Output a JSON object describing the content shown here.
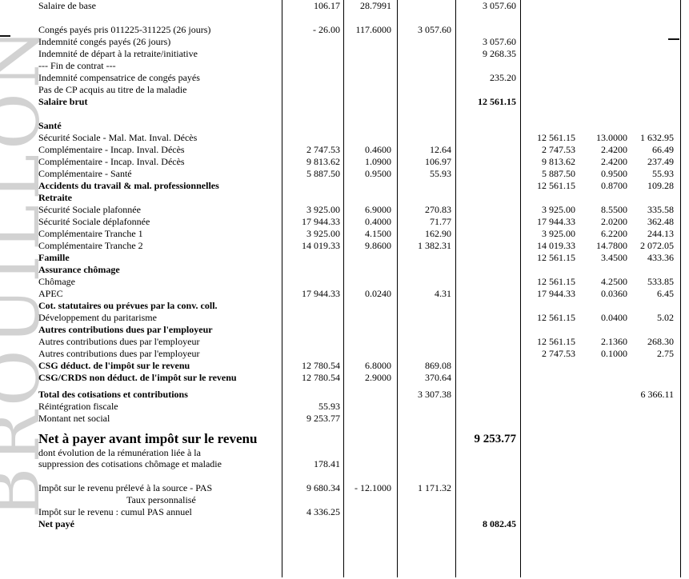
{
  "document": {
    "watermark": "BROUILLON",
    "rows": [
      {
        "label": "Salaire de base",
        "base": "106.17",
        "rate": "28.7991",
        "net": "3 057.60"
      },
      {
        "label": ""
      },
      {
        "label": "Congés payés pris 011225-311225 (26 jours)",
        "base": "- 26.00",
        "rate": "117.6000",
        "amount": "3 057.60"
      },
      {
        "label": "Indemnité congés payés (26 jours)",
        "net": "3 057.60"
      },
      {
        "label": "Indemnité de départ à la retraite/initiative",
        "net": "9 268.35"
      },
      {
        "label": "--- Fin de contrat ---"
      },
      {
        "label": "Indemnité compensatrice de congés payés",
        "net": "235.20"
      },
      {
        "label": "Pas de CP acquis au titre de la maladie"
      },
      {
        "label": "Salaire brut",
        "bold": true,
        "net": "12 561.15",
        "net_bold": true
      },
      {
        "label": ""
      },
      {
        "label": "Santé",
        "bold": true
      },
      {
        "label": "Sécurité Sociale - Mal. Mat. Inval. Décès",
        "emp_base": "12 561.15",
        "emp_rate": "13.0000",
        "emp_amount": "1 632.95"
      },
      {
        "label": "Complémentaire - Incap. Inval. Décès",
        "base": "2 747.53",
        "rate": "0.4600",
        "amount": "12.64",
        "emp_base": "2 747.53",
        "emp_rate": "2.4200",
        "emp_amount": "66.49"
      },
      {
        "label": "Complémentaire - Incap. Inval. Décès",
        "base": "9 813.62",
        "rate": "1.0900",
        "amount": "106.97",
        "emp_base": "9 813.62",
        "emp_rate": "2.4200",
        "emp_amount": "237.49"
      },
      {
        "label": "Complémentaire - Santé",
        "base": "5 887.50",
        "rate": "0.9500",
        "amount": "55.93",
        "emp_base": "5 887.50",
        "emp_rate": "0.9500",
        "emp_amount": "55.93"
      },
      {
        "label": "Accidents du travail & mal. professionnelles",
        "bold": true,
        "emp_base": "12 561.15",
        "emp_rate": "0.8700",
        "emp_amount": "109.28"
      },
      {
        "label": "Retraite",
        "bold": true
      },
      {
        "label": "Sécurité Sociale plafonnée",
        "base": "3 925.00",
        "rate": "6.9000",
        "amount": "270.83",
        "emp_base": "3 925.00",
        "emp_rate": "8.5500",
        "emp_amount": "335.58"
      },
      {
        "label": "Sécurité Sociale déplafonnée",
        "base": "17 944.33",
        "rate": "0.4000",
        "amount": "71.77",
        "emp_base": "17 944.33",
        "emp_rate": "2.0200",
        "emp_amount": "362.48"
      },
      {
        "label": "Complémentaire Tranche 1",
        "base": "3 925.00",
        "rate": "4.1500",
        "amount": "162.90",
        "emp_base": "3 925.00",
        "emp_rate": "6.2200",
        "emp_amount": "244.13"
      },
      {
        "label": "Complémentaire Tranche 2",
        "base": "14 019.33",
        "rate": "9.8600",
        "amount": "1 382.31",
        "emp_base": "14 019.33",
        "emp_rate": "14.7800",
        "emp_amount": "2 072.05"
      },
      {
        "label": "Famille",
        "bold": true,
        "emp_base": "12 561.15",
        "emp_rate": "3.4500",
        "emp_amount": "433.36"
      },
      {
        "label": "Assurance chômage",
        "bold": true
      },
      {
        "label": "Chômage",
        "emp_base": "12 561.15",
        "emp_rate": "4.2500",
        "emp_amount": "533.85"
      },
      {
        "label": "APEC",
        "base": "17 944.33",
        "rate": "0.0240",
        "amount": "4.31",
        "emp_base": "17 944.33",
        "emp_rate": "0.0360",
        "emp_amount": "6.45"
      },
      {
        "label": "Cot. statutaires ou prévues par la conv. coll.",
        "bold": true
      },
      {
        "label": "Développement du paritarisme",
        "emp_base": "12 561.15",
        "emp_rate": "0.0400",
        "emp_amount": "5.02"
      },
      {
        "label": "Autres contributions dues par l'employeur",
        "bold": true
      },
      {
        "label": "Autres contributions dues par l'employeur",
        "emp_base": "12 561.15",
        "emp_rate": "2.1360",
        "emp_amount": "268.30"
      },
      {
        "label": "Autres contributions dues par l'employeur",
        "emp_base": "2 747.53",
        "emp_rate": "0.1000",
        "emp_amount": "2.75"
      },
      {
        "label": "CSG déduct. de l'impôt sur le revenu",
        "bold": true,
        "base": "12 780.54",
        "rate": "6.8000",
        "amount": "869.08"
      },
      {
        "label": "CSG/CRDS non déduct. de l'impôt sur le revenu",
        "bold": true,
        "base": "12 780.54",
        "rate": "2.9000",
        "amount": "370.64"
      },
      {
        "spacer": 6
      },
      {
        "label": "Total des cotisations et contributions",
        "bold": true,
        "amount": "3 307.38",
        "emp_amount": "6 366.11"
      },
      {
        "label": "Réintégration fiscale",
        "base": "55.93"
      },
      {
        "label": "Montant net social",
        "base": "9 253.77"
      },
      {
        "spacer": 7
      },
      {
        "label": "Net à payer avant impôt sur le revenu",
        "big": true,
        "net": "9 253.77"
      },
      {
        "label": "dont évolution de la rémunération liée à la",
        "small": true
      },
      {
        "label": "suppression des cotisations chômage et maladie",
        "base": "178.41"
      },
      {
        "label": ""
      },
      {
        "label": "Impôt sur le revenu prélevé à la source - PAS",
        "base": "9 680.34",
        "rate": "- 12.1000",
        "amount": "1 171.32"
      },
      {
        "label": "Taux personnalisé",
        "indent": true
      },
      {
        "label": "Impôt sur le revenu : cumul PAS annuel",
        "base": "4 336.25"
      },
      {
        "label": "Net payé",
        "bold": true,
        "net": "8 082.45",
        "net_bold": true
      }
    ]
  },
  "layout_colors": {
    "text": "#000000",
    "table_lines": "#000000",
    "watermark_gray": "#d2d2d2"
  }
}
